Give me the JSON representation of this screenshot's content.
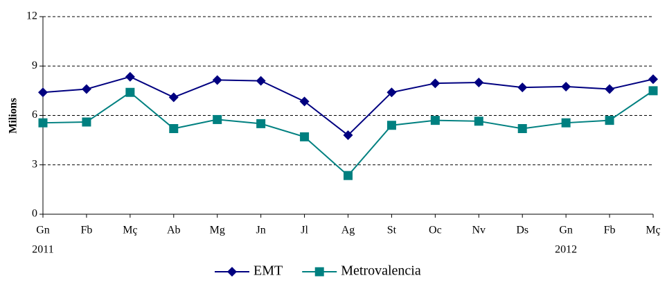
{
  "chart_data": {
    "type": "line",
    "y_label": "Milions",
    "categories": [
      "Gn",
      "Fb",
      "Mç",
      "Ab",
      "Mg",
      "Jn",
      "Jl",
      "Ag",
      "St",
      "Oc",
      "Nv",
      "Ds",
      "Gn",
      "Fb",
      "Mç"
    ],
    "years": [
      "2011",
      null,
      null,
      null,
      null,
      null,
      null,
      null,
      null,
      null,
      null,
      null,
      "2012",
      null,
      null
    ],
    "series": [
      {
        "name": "EMT",
        "color": "#000080",
        "marker": "diamond",
        "values": [
          7.4,
          7.6,
          8.35,
          7.1,
          8.15,
          8.1,
          6.85,
          4.8,
          7.4,
          7.95,
          8.0,
          7.7,
          7.75,
          7.6,
          8.2
        ]
      },
      {
        "name": "Metrovalencia",
        "color": "#008080",
        "marker": "square",
        "values": [
          5.55,
          5.6,
          7.4,
          5.2,
          5.75,
          5.5,
          4.7,
          2.35,
          5.4,
          5.7,
          5.65,
          5.2,
          5.55,
          5.7,
          7.5
        ]
      }
    ],
    "ylim": [
      0,
      12
    ],
    "yticks": [
      0,
      3,
      6,
      9,
      12
    ],
    "grid": true,
    "legend": "bottom"
  }
}
